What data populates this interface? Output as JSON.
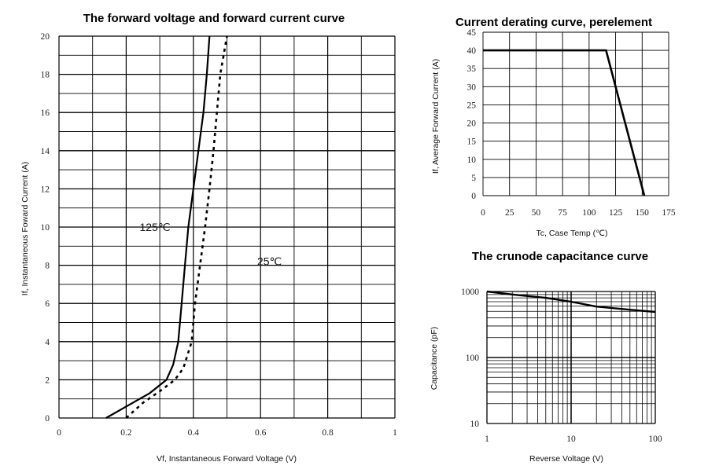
{
  "chart_data": [
    {
      "type": "line",
      "title": "The forward voltage and forward current curve",
      "xlabel": "Vf, Instantaneous Forward Voltage (V)",
      "ylabel": "If, Instantaneous Foward Current (A)",
      "xlim": [
        0,
        1
      ],
      "ylim": [
        0,
        20
      ],
      "x_ticks": [
        "0",
        "0.2",
        "0.4",
        "0.6",
        "0.8",
        "1"
      ],
      "y_ticks": [
        "0",
        "2",
        "4",
        "6",
        "8",
        "10",
        "12",
        "14",
        "16",
        "18",
        "20"
      ],
      "grid": true,
      "series": [
        {
          "name": "125℃",
          "style": "solid",
          "points": [
            [
              0.14,
              0
            ],
            [
              0.2,
              0.6
            ],
            [
              0.27,
              1.3
            ],
            [
              0.32,
              2
            ],
            [
              0.34,
              2.8
            ],
            [
              0.355,
              4
            ],
            [
              0.365,
              6
            ],
            [
              0.375,
              8
            ],
            [
              0.385,
              10
            ],
            [
              0.4,
              12
            ],
            [
              0.415,
              14
            ],
            [
              0.43,
              16
            ],
            [
              0.44,
              18
            ],
            [
              0.448,
              20
            ]
          ]
        },
        {
          "name": "25℃",
          "style": "dashed",
          "points": [
            [
              0.2,
              0
            ],
            [
              0.25,
              0.8
            ],
            [
              0.3,
              1.4
            ],
            [
              0.345,
              2
            ],
            [
              0.37,
              2.6
            ],
            [
              0.395,
              4
            ],
            [
              0.405,
              6
            ],
            [
              0.42,
              8
            ],
            [
              0.435,
              10
            ],
            [
              0.448,
              12
            ],
            [
              0.46,
              14
            ],
            [
              0.47,
              16
            ],
            [
              0.48,
              18
            ],
            [
              0.5,
              20
            ]
          ]
        }
      ],
      "annotations": [
        {
          "text": "125℃",
          "x": 0.24,
          "y": 10
        },
        {
          "text": "25℃",
          "x": 0.59,
          "y": 8.2
        }
      ]
    },
    {
      "type": "line",
      "title": "Current derating curve, perelement",
      "xlabel": "Tc, Case Temp (℃)",
      "ylabel": "If, Average Forward Current (A)",
      "xlim": [
        0,
        175
      ],
      "ylim": [
        0,
        45
      ],
      "x_ticks": [
        "0",
        "25",
        "50",
        "75",
        "100",
        "125",
        "150",
        "175"
      ],
      "y_ticks": [
        "0",
        "5",
        "10",
        "15",
        "20",
        "25",
        "30",
        "35",
        "40",
        "45"
      ],
      "grid": true,
      "series": [
        {
          "style": "solid",
          "points": [
            [
              0,
              40
            ],
            [
              116,
              40
            ],
            [
              152,
              0
            ]
          ]
        }
      ]
    },
    {
      "type": "line",
      "title": "The crunode capacitance curve",
      "xlabel": "Reverse Voltage (V)",
      "ylabel": "Capacitance (pF)",
      "xscale": "log",
      "yscale": "log",
      "xlim": [
        1,
        100
      ],
      "ylim": [
        10,
        1000
      ],
      "x_ticks": [
        "1",
        "10",
        "100"
      ],
      "y_ticks": [
        "10",
        "100",
        "1000"
      ],
      "grid": true,
      "series": [
        {
          "style": "solid",
          "points": [
            [
              1,
              1000
            ],
            [
              2,
              900
            ],
            [
              5,
              800
            ],
            [
              10,
              700
            ],
            [
              20,
              590
            ],
            [
              50,
              530
            ],
            [
              100,
              490
            ]
          ]
        }
      ]
    }
  ]
}
